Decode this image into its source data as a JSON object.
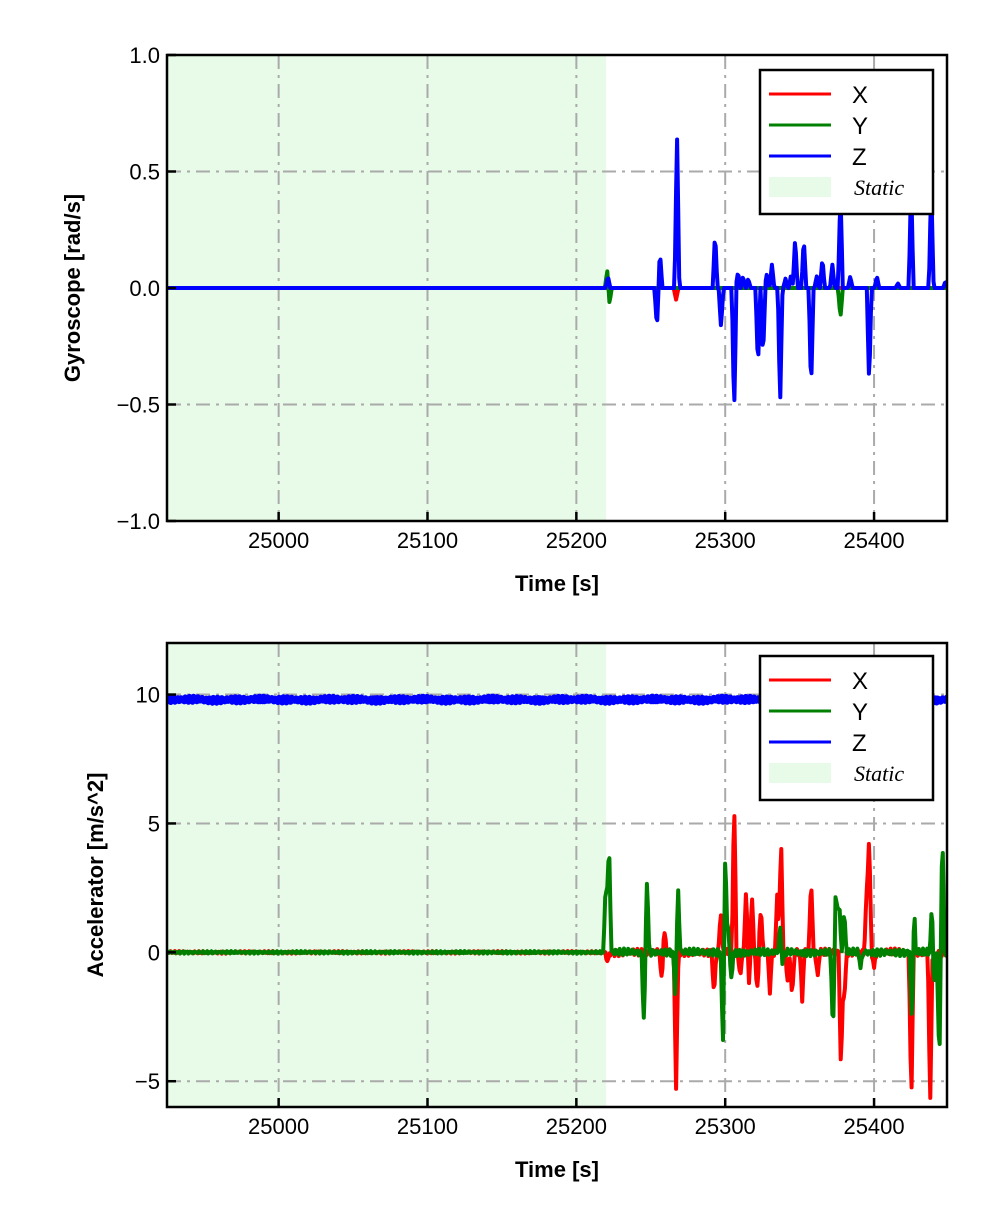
{
  "chart_data": [
    {
      "type": "line",
      "xlabel": "Time [s]",
      "ylabel": "Gyroscope [rad/s]",
      "xlim": [
        24925,
        25449
      ],
      "ylim": [
        -1.0,
        1.0
      ],
      "xticks": [
        25000,
        25100,
        25200,
        25300,
        25400
      ],
      "xtick_labels": [
        "25000",
        "25100",
        "25200",
        "25300",
        "25400"
      ],
      "yticks": [
        -1.0,
        -0.5,
        0.0,
        0.5,
        1.0
      ],
      "ytick_labels": [
        "−1.0",
        "−0.5",
        "0.0",
        "0.5",
        "1.0"
      ],
      "grid": true,
      "legend_position": "top-right",
      "static_region": {
        "label": "Static",
        "x": [
          24925,
          25220
        ],
        "color": "#e8fbe8"
      },
      "series": [
        {
          "name": "X",
          "color": "#ff0000",
          "baseline": 0,
          "spikes": [
            [
              25221.0,
              0.05
            ],
            [
              25222.0,
              -0.05
            ],
            [
              25267.0,
              -0.05
            ]
          ]
        },
        {
          "name": "Y",
          "color": "#008000",
          "baseline": 0,
          "spikes": [
            [
              25220.8,
              0.08
            ],
            [
              25222.2,
              -0.07
            ],
            [
              25377.4,
              -0.13
            ]
          ]
        },
        {
          "name": "Z",
          "color": "#0000ff",
          "baseline": 0,
          "spikes": [
            [
              25221.2,
              0.05
            ],
            [
              25254.1,
              -0.17
            ],
            [
              25256.2,
              0.15
            ],
            [
              25267.6,
              0.68
            ],
            [
              25293.2,
              0.24
            ],
            [
              25297.2,
              -0.17
            ],
            [
              25306.0,
              -0.55
            ],
            [
              25308.6,
              0.07
            ],
            [
              25312.0,
              0.05
            ],
            [
              25315.5,
              0.04
            ],
            [
              25322.0,
              -0.35
            ],
            [
              25325.4,
              -0.3
            ],
            [
              25328.0,
              0.06
            ],
            [
              25331.4,
              0.1
            ],
            [
              25336.9,
              -0.5
            ],
            [
              25340.5,
              0.04
            ],
            [
              25344.3,
              0.06
            ],
            [
              25347.0,
              0.22
            ],
            [
              25352.8,
              0.22
            ],
            [
              25357.7,
              -0.45
            ],
            [
              25361.5,
              0.05
            ],
            [
              25365.3,
              0.13
            ],
            [
              25372.0,
              0.1
            ],
            [
              25377.4,
              0.42
            ],
            [
              25384.0,
              0.05
            ],
            [
              25396.7,
              -0.42
            ],
            [
              25401.9,
              0.05
            ],
            [
              25416.0,
              0.02
            ],
            [
              25424.9,
              0.45
            ],
            [
              25438.4,
              0.45
            ],
            [
              25448.0,
              0.03
            ]
          ]
        }
      ]
    },
    {
      "type": "line",
      "xlabel": "Time [s]",
      "ylabel": "Accelerator [m/s^2]",
      "xlim": [
        24925,
        25449
      ],
      "ylim": [
        -6,
        12
      ],
      "xticks": [
        25000,
        25100,
        25200,
        25300,
        25400
      ],
      "xtick_labels": [
        "25000",
        "25100",
        "25200",
        "25300",
        "25400"
      ],
      "yticks": [
        -5,
        0,
        5,
        10
      ],
      "ytick_labels": [
        "−5",
        "0",
        "5",
        "10"
      ],
      "grid": true,
      "legend_position": "top-right",
      "static_region": {
        "label": "Static",
        "x": [
          24925,
          25220
        ],
        "color": "#e8fbe8"
      },
      "series": [
        {
          "name": "X",
          "color": "#ff0000",
          "baseline": 0,
          "spikes": [
            [
              25221.0,
              -0.4
            ],
            [
              25257.5,
              -1.3
            ],
            [
              25258.9,
              1.1
            ],
            [
              25267.0,
              -5.2
            ],
            [
              25292.5,
              -1.7
            ],
            [
              25297.0,
              1.6
            ],
            [
              25306.0,
              6.1
            ],
            [
              25310.0,
              -1.0
            ],
            [
              25314.0,
              2.5
            ],
            [
              25316.0,
              -1.2
            ],
            [
              25318.0,
              2.2
            ],
            [
              25321.4,
              -1.5
            ],
            [
              25324.0,
              1.8
            ],
            [
              25330.0,
              -1.5
            ],
            [
              25335.0,
              2.3
            ],
            [
              25337.5,
              4.5
            ],
            [
              25342.0,
              -1.2
            ],
            [
              25345.0,
              -1.8
            ],
            [
              25351.7,
              -1.8
            ],
            [
              25357.7,
              3.0
            ],
            [
              25362.0,
              -1.0
            ],
            [
              25377.8,
              -4.8
            ],
            [
              25380.0,
              -2.0
            ],
            [
              25395.0,
              2.5
            ],
            [
              25396.7,
              4.6
            ],
            [
              25400.0,
              -0.6
            ],
            [
              25425.0,
              -6.0
            ],
            [
              25437.7,
              -6.0
            ],
            [
              25441.0,
              -1.0
            ]
          ]
        },
        {
          "name": "Y",
          "color": "#008000",
          "baseline": 0,
          "spikes": [
            [
              25219.8,
              2.9
            ],
            [
              25221.9,
              4.6
            ],
            [
              25245.4,
              -2.8
            ],
            [
              25247.4,
              2.8
            ],
            [
              25268.3,
              2.5
            ],
            [
              25266.5,
              -1.7
            ],
            [
              25298.6,
              -4.2
            ],
            [
              25299.9,
              4.3
            ],
            [
              25302.0,
              1.0
            ],
            [
              25304.0,
              -1.1
            ],
            [
              25337.0,
              1.0
            ],
            [
              25338.5,
              -0.5
            ],
            [
              25372.4,
              -3.2
            ],
            [
              25374.4,
              2.6
            ],
            [
              25376.5,
              2.2
            ],
            [
              25379.9,
              1.6
            ],
            [
              25391.0,
              -0.6
            ],
            [
              25425.6,
              -3.8
            ],
            [
              25426.5,
              2.4
            ],
            [
              25439.1,
              2.4
            ],
            [
              25440.0,
              -2.0
            ],
            [
              25443.8,
              -4.4
            ],
            [
              25445.9,
              4.6
            ]
          ]
        },
        {
          "name": "Z",
          "color": "#0000ff",
          "baseline": 9.8,
          "spikes": []
        }
      ]
    }
  ]
}
